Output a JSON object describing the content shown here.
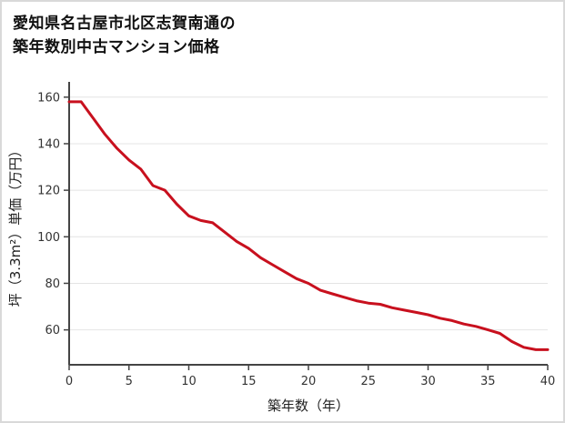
{
  "header": {
    "title_line1": "愛知県名古屋市北区志賀南通の",
    "title_line2": "築年数別中古マンション価格"
  },
  "chart_data": {
    "type": "line",
    "title": "愛知県名古屋市北区志賀南通の築年数別中古マンション価格",
    "xlabel": "築年数（年）",
    "ylabel": "坪（3.3m²）単価（万円）",
    "x": [
      0,
      1,
      2,
      3,
      4,
      5,
      6,
      7,
      8,
      9,
      10,
      11,
      12,
      13,
      14,
      15,
      16,
      17,
      18,
      19,
      20,
      21,
      22,
      23,
      24,
      25,
      26,
      27,
      28,
      29,
      30,
      31,
      32,
      33,
      34,
      35,
      36,
      37,
      38,
      39,
      40
    ],
    "y": [
      158,
      158,
      151,
      144,
      138,
      133,
      129,
      122,
      120,
      114,
      109,
      107,
      106,
      102,
      98,
      95,
      91,
      88,
      85,
      82,
      80,
      77,
      75.5,
      74,
      72.5,
      71.5,
      71,
      69.5,
      68.5,
      67.5,
      66.5,
      65,
      64,
      62.5,
      61.5,
      60,
      58.5,
      55,
      52.5,
      51.5,
      51.5
    ],
    "xticks": [
      0,
      5,
      10,
      15,
      20,
      25,
      30,
      35,
      40
    ],
    "yticks": [
      60,
      80,
      100,
      120,
      140,
      160
    ],
    "xlim": [
      0,
      40
    ],
    "ylim": [
      45,
      165
    ],
    "grid": true,
    "legend": "none",
    "line_color": "#c8101e",
    "axis_color": "#444444",
    "grid_color": "#e4e4e4",
    "tick_label_color": "#333333"
  }
}
